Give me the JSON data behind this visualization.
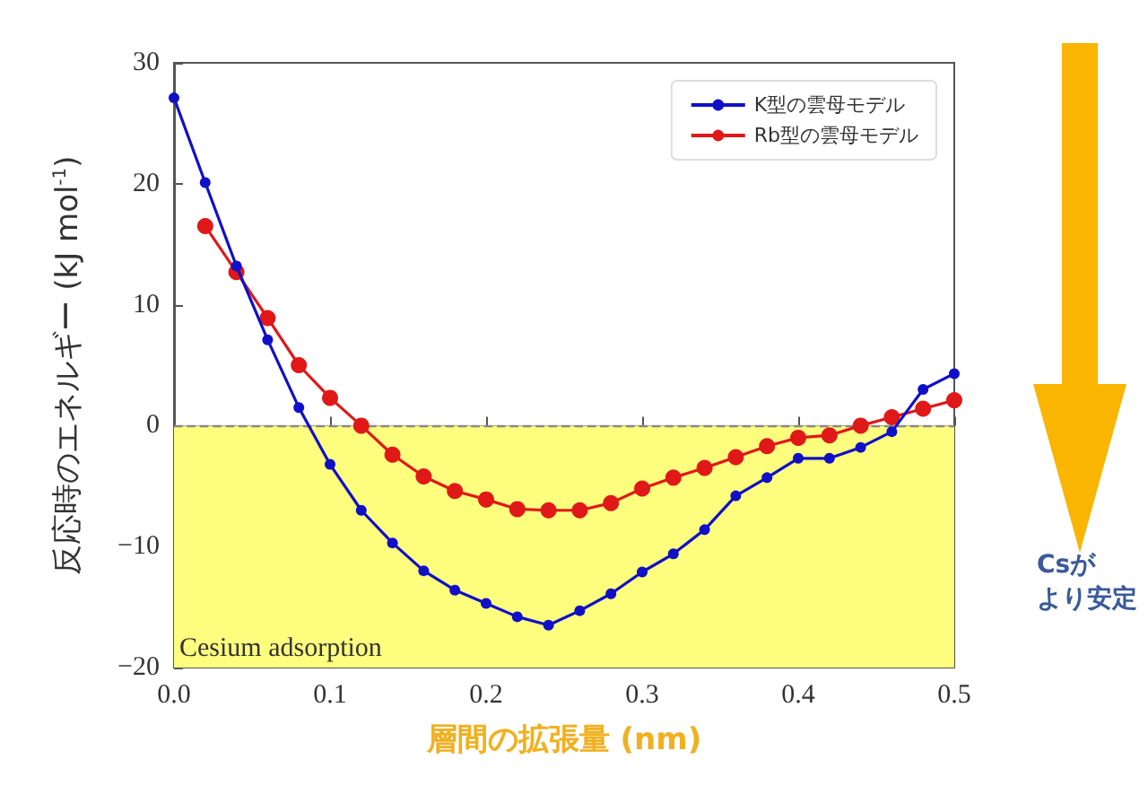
{
  "chart_data": {
    "type": "line",
    "xlabel": "層間の拡張量 (nm)",
    "ylabel": "反応時のエネルギー (kJ mol$^{-1}$)",
    "series": [
      {
        "name": "K型の雲母モデル",
        "color": "#1010c8",
        "x": [
          0,
          0.02,
          0.04,
          0.06,
          0.08,
          0.1,
          0.12,
          0.14,
          0.16,
          0.18,
          0.2,
          0.22,
          0.24,
          0.26,
          0.28,
          0.3,
          0.32,
          0.34,
          0.36,
          0.38,
          0.4,
          0.42,
          0.44,
          0.46,
          0.48,
          0.5
        ],
        "values": [
          27.1,
          20.1,
          13.2,
          7.1,
          1.5,
          -3.2,
          -7,
          -9.7,
          -12,
          -13.6,
          -14.7,
          -15.8,
          -16.5,
          -15.3,
          -13.9,
          -12.1,
          -10.6,
          -8.6,
          -5.8,
          -4.3,
          -2.7,
          -2.7,
          -1.8,
          -0.5,
          3,
          4.3
        ]
      },
      {
        "name": "Rb型の雲母モデル",
        "color": "#e01818",
        "x": [
          0.02,
          0.04,
          0.06,
          0.08,
          0.1,
          0.12,
          0.14,
          0.16,
          0.18,
          0.2,
          0.22,
          0.24,
          0.26,
          0.28,
          0.3,
          0.32,
          0.34,
          0.36,
          0.38,
          0.4,
          0.42,
          0.44,
          0.46,
          0.48,
          0.5
        ],
        "values": [
          16.5,
          12.7,
          8.9,
          5,
          2.3,
          0,
          -2.4,
          -4.2,
          -5.4,
          -6.1,
          -6.9,
          -7,
          -7,
          -6.4,
          -5.2,
          -4.3,
          -3.5,
          -2.6,
          -1.7,
          -1,
          -0.8,
          0,
          0.7,
          1.4,
          2.1
        ]
      }
    ],
    "xlim": [
      0,
      0.5
    ],
    "xticks": [
      {
        "value": 0,
        "label": "0.0"
      },
      0.1,
      0.2,
      0.3,
      0.4,
      0.5
    ],
    "ylim": [
      -20,
      30
    ],
    "yticks": [
      -20,
      -10,
      0,
      10,
      20,
      30
    ],
    "bands": [
      {
        "axis": "y",
        "from": -20,
        "to": 0,
        "label": "Cesium adsorption",
        "color": "#fdfd7e"
      }
    ],
    "ref_lines": [
      {
        "axis": "y",
        "value": 0,
        "label": null,
        "color": "#888888",
        "line_style": "dashed"
      }
    ],
    "annotations": [
      "Csが",
      "より安定"
    ],
    "legend": "top right",
    "grid": false,
    "marker": "circle",
    "line_style": "solid"
  }
}
